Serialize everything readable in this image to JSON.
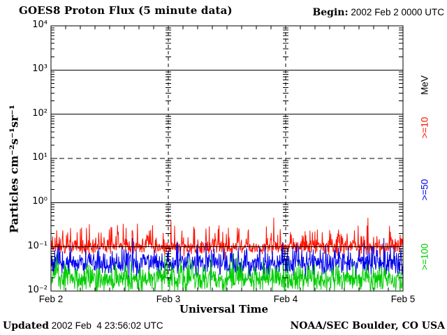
{
  "header": {
    "title": "GOES8 Proton Flux (5 minute data)",
    "begin_label": "Begin:",
    "begin_value": "2002 Feb 2 0000 UTC"
  },
  "footer": {
    "updated_label": "Updated",
    "updated_value": "2002 Feb  4 23:56:02 UTC",
    "credit": "NOAA/SEC Boulder, CO USA"
  },
  "chart_data": {
    "type": "line",
    "title": "GOES8 Proton Flux (5 minute data)",
    "xlabel": "Universal Time",
    "ylabel": "Particles cm⁻²s⁻¹sr⁻¹",
    "unit_label": "MeV",
    "x_tick_labels": [
      "Feb 2",
      "Feb 3",
      "Feb 4",
      "Feb 5"
    ],
    "y_tick_labels": [
      "10⁴",
      "10³",
      "10²",
      "10¹",
      "10⁰",
      "10⁻¹",
      "10⁻²"
    ],
    "y_tick_exponents": [
      4,
      3,
      2,
      1,
      0,
      -1,
      -2
    ],
    "ylog_range": [
      -2,
      4
    ],
    "days": 3,
    "samples_per_day": 288,
    "minor_x_tick_hours": 3,
    "solid_line_exponents": [
      3,
      2,
      0,
      -1
    ],
    "dashed_line_exponents": [
      1
    ],
    "grid_color": "#000000",
    "legend_position": "right-rotated",
    "series": [
      {
        "name": ">=10",
        "color": "#ff1100",
        "approx_median_flux": 0.1,
        "approx_range_flux": [
          0.05,
          0.5
        ],
        "log_base": -1.01,
        "log_sd": 0.09,
        "spike_prob": 0.3,
        "spike_mag": 0.48,
        "clamp": [
          -1.28,
          -0.31
        ],
        "seed": 20021
      },
      {
        "name": ">=50",
        "color": "#0000ee",
        "approx_median_flux": 0.04,
        "approx_range_flux": [
          0.018,
          0.16
        ],
        "log_base": -1.38,
        "log_sd": 0.13,
        "spike_prob": 0.2,
        "spike_mag": 0.42,
        "clamp": [
          -1.76,
          -0.8
        ],
        "seed": 20022
      },
      {
        "name": ">=100",
        "color": "#00cc00",
        "approx_median_flux": 0.018,
        "approx_range_flux": [
          0.01,
          0.07
        ],
        "log_base": -1.73,
        "log_sd": 0.15,
        "spike_prob": 0.15,
        "spike_mag": 0.38,
        "clamp": [
          -2.0,
          -1.16
        ],
        "seed": 20023
      }
    ]
  }
}
